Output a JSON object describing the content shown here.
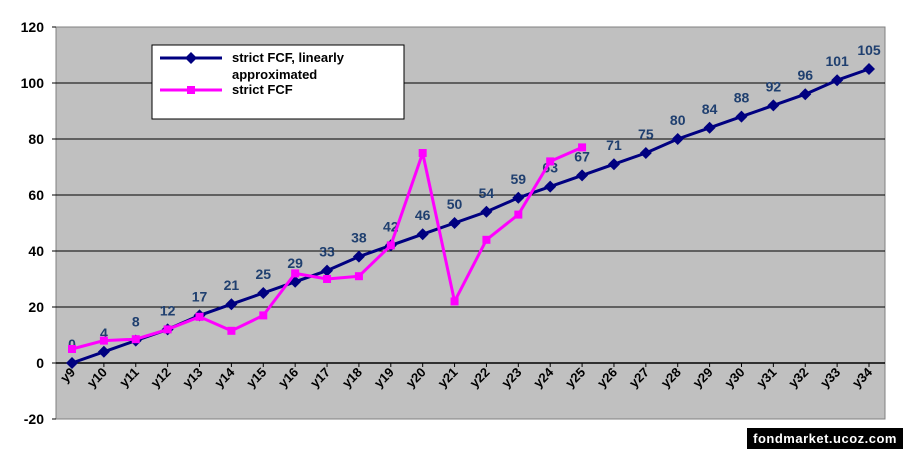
{
  "watermark": "fondmarket.ucoz.com",
  "chart_data": {
    "type": "line",
    "title": "",
    "xlabel": "",
    "ylabel": "",
    "categories": [
      "y9",
      "y10",
      "y11",
      "y12",
      "y13",
      "y14",
      "y15",
      "y16",
      "y17",
      "y18",
      "y19",
      "y20",
      "y21",
      "y22",
      "y23",
      "y24",
      "y25",
      "y26",
      "y27",
      "y28",
      "y29",
      "y30",
      "y31",
      "y32",
      "y33",
      "y34"
    ],
    "ylim": [
      -20,
      120
    ],
    "yticks": [
      -20,
      0,
      20,
      40,
      60,
      80,
      100,
      120
    ],
    "grid": true,
    "legend_position": "top-left",
    "plot_background": "#c0c0c0",
    "series": [
      {
        "name": "strict FCF, linearly approximated",
        "color": "#000080",
        "marker": "diamond",
        "values": [
          0,
          4,
          8,
          12,
          17,
          21,
          25,
          29,
          33,
          38,
          42,
          46,
          50,
          54,
          59,
          63,
          67,
          71,
          75,
          80,
          84,
          88,
          92,
          96,
          101,
          105
        ],
        "data_labels": [
          "0",
          "4",
          "8",
          "12",
          "17",
          "21",
          "25",
          "29",
          "33",
          "38",
          "42",
          "46",
          "50",
          "54",
          "59",
          "63",
          "67",
          "71",
          "75",
          "80",
          "84",
          "88",
          "92",
          "96",
          "101",
          "105"
        ],
        "label_color": "#1f3f6f"
      },
      {
        "name": "strict FCF",
        "color": "#ff00ff",
        "marker": "square",
        "values": [
          5,
          8,
          8.5,
          12,
          16.5,
          11.5,
          17,
          32,
          30,
          31,
          42,
          75,
          22,
          44,
          53,
          72,
          77,
          null,
          null,
          null,
          null,
          null,
          null,
          null,
          null,
          null
        ]
      }
    ]
  }
}
